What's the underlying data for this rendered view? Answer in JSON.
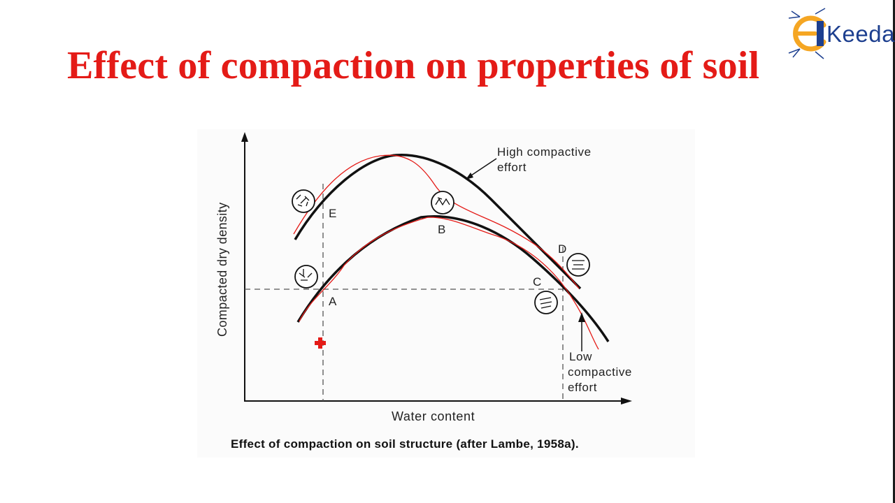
{
  "slide": {
    "title": "Effect of compaction on properties of soil",
    "logo_text": "Keeda",
    "logo_letter": "E"
  },
  "figure": {
    "y_label": "Compacted dry density",
    "x_label": "Water content",
    "caption": "Effect of compaction on soil structure (after Lambe, 1958a).",
    "curves": {
      "high": {
        "line1": "High compactive",
        "line2": "effort"
      },
      "low": {
        "line1": "Low",
        "line2": "compactive",
        "line3": "effort"
      }
    },
    "points": {
      "A": "A",
      "B": "B",
      "C": "C",
      "D": "D",
      "E": "E"
    }
  },
  "colors": {
    "title": "#e41b17",
    "curve": "#111111",
    "annotation": "#e41b17",
    "logo_orange": "#f5a623",
    "logo_blue": "#1d3f8f"
  },
  "icons": [
    "soil-structure-flocculated-icon",
    "soil-structure-dispersed-icon",
    "red-cursor-cross-icon"
  ]
}
